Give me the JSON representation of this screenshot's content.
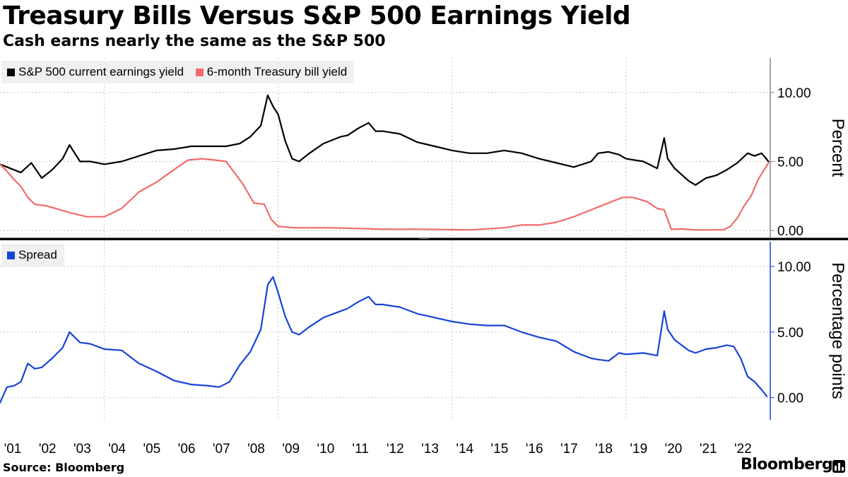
{
  "title": "Treasury Bills Versus S&P 500 Earnings Yield",
  "subtitle": "Cash earns nearly the same as the S&P 500",
  "source": "Source: Bloomberg",
  "brand": "Bloomberg",
  "colors": {
    "earnings_yield": "#000000",
    "tbill": "#f06b6b",
    "spread": "#1744d6",
    "grid": "#c8c8c8",
    "legend_bg": "#f0f0f0"
  },
  "chart_data": [
    {
      "type": "line",
      "panel": "top",
      "ylabel": "Percent",
      "ylim": [
        -0.5,
        12.5
      ],
      "yticks": [
        0,
        5,
        10
      ],
      "ytick_labels": [
        "0.00",
        "5.00",
        "10.00"
      ],
      "legend_placement": "top-left",
      "series": [
        {
          "name": "S&P 500 current earnings yield",
          "color": "#000000",
          "x": [
            2001.0,
            2001.3,
            2001.6,
            2001.9,
            2002.2,
            2002.5,
            2002.8,
            2003.0,
            2003.3,
            2003.6,
            2004.0,
            2004.5,
            2005.0,
            2005.5,
            2006.0,
            2006.5,
            2007.0,
            2007.5,
            2007.9,
            2008.2,
            2008.5,
            2008.7,
            2008.85,
            2009.0,
            2009.2,
            2009.4,
            2009.6,
            2009.9,
            2010.3,
            2010.8,
            2011.0,
            2011.3,
            2011.6,
            2011.8,
            2012.0,
            2012.5,
            2013.0,
            2013.5,
            2014.0,
            2014.5,
            2015.0,
            2015.5,
            2016.0,
            2016.5,
            2017.0,
            2017.5,
            2018.0,
            2018.2,
            2018.5,
            2018.8,
            2019.0,
            2019.5,
            2019.9,
            2020.1,
            2020.2,
            2020.4,
            2020.8,
            2021.0,
            2021.3,
            2021.6,
            2021.9,
            2022.2,
            2022.5,
            2022.7,
            2022.9,
            2023.1
          ],
          "values": [
            4.8,
            4.5,
            4.2,
            4.9,
            3.8,
            4.4,
            5.2,
            6.2,
            5.0,
            5.0,
            4.8,
            5.0,
            5.4,
            5.8,
            5.9,
            6.1,
            6.1,
            6.1,
            6.3,
            6.8,
            7.6,
            9.8,
            9.0,
            8.4,
            6.5,
            5.2,
            5.0,
            5.6,
            6.3,
            6.8,
            6.9,
            7.4,
            7.8,
            7.2,
            7.2,
            7.0,
            6.4,
            6.1,
            5.8,
            5.6,
            5.6,
            5.8,
            5.6,
            5.2,
            4.9,
            4.6,
            5.0,
            5.6,
            5.7,
            5.5,
            5.2,
            5.0,
            4.5,
            6.7,
            5.2,
            4.5,
            3.6,
            3.3,
            3.8,
            4.0,
            4.4,
            4.9,
            5.6,
            5.4,
            5.6,
            5.0
          ]
        },
        {
          "name": "6-month Treasury bill yield",
          "color": "#f06b6b",
          "x": [
            2001.0,
            2001.2,
            2001.4,
            2001.6,
            2001.8,
            2002.0,
            2002.3,
            2002.6,
            2003.0,
            2003.5,
            2004.0,
            2004.5,
            2005.0,
            2005.5,
            2006.0,
            2006.4,
            2006.8,
            2007.2,
            2007.5,
            2007.8,
            2008.0,
            2008.3,
            2008.6,
            2008.8,
            2009.0,
            2009.5,
            2010.5,
            2012.0,
            2013.0,
            2014.5,
            2015.5,
            2016.0,
            2016.5,
            2017.0,
            2017.5,
            2018.0,
            2018.5,
            2018.9,
            2019.2,
            2019.6,
            2019.9,
            2020.1,
            2020.3,
            2020.6,
            2021.0,
            2021.5,
            2021.8,
            2022.0,
            2022.2,
            2022.4,
            2022.6,
            2022.8,
            2023.0,
            2023.1
          ],
          "values": [
            4.8,
            4.3,
            3.7,
            3.2,
            2.4,
            1.9,
            1.8,
            1.6,
            1.3,
            1.0,
            1.0,
            1.6,
            2.8,
            3.5,
            4.4,
            5.1,
            5.2,
            5.1,
            5.0,
            4.0,
            3.3,
            2.0,
            1.9,
            0.8,
            0.3,
            0.2,
            0.2,
            0.1,
            0.1,
            0.05,
            0.2,
            0.4,
            0.4,
            0.6,
            1.0,
            1.5,
            2.0,
            2.4,
            2.4,
            2.1,
            1.6,
            1.5,
            0.1,
            0.12,
            0.05,
            0.05,
            0.06,
            0.3,
            0.9,
            1.8,
            2.5,
            3.7,
            4.5,
            4.9
          ]
        }
      ]
    },
    {
      "type": "line",
      "panel": "bottom",
      "ylabel": "Percentage points",
      "ylim": [
        -1.8,
        12.0
      ],
      "yticks": [
        0,
        5,
        10
      ],
      "ytick_labels": [
        "0.00",
        "5.00",
        "10.00"
      ],
      "legend_placement": "top-left",
      "series": [
        {
          "name": "Spread",
          "color": "#1744d6",
          "x": [
            2001.0,
            2001.2,
            2001.4,
            2001.6,
            2001.8,
            2002.0,
            2002.2,
            2002.5,
            2002.8,
            2003.0,
            2003.3,
            2003.6,
            2004.0,
            2004.5,
            2005.0,
            2005.5,
            2006.0,
            2006.5,
            2007.0,
            2007.3,
            2007.6,
            2007.9,
            2008.2,
            2008.5,
            2008.7,
            2008.85,
            2009.0,
            2009.2,
            2009.4,
            2009.6,
            2009.9,
            2010.3,
            2010.8,
            2011.0,
            2011.3,
            2011.6,
            2011.8,
            2012.0,
            2012.5,
            2013.0,
            2013.5,
            2014.0,
            2014.5,
            2015.0,
            2015.5,
            2016.0,
            2016.5,
            2017.0,
            2017.5,
            2018.0,
            2018.2,
            2018.5,
            2018.8,
            2019.0,
            2019.5,
            2019.9,
            2020.1,
            2020.2,
            2020.4,
            2020.8,
            2021.0,
            2021.3,
            2021.6,
            2021.9,
            2022.1,
            2022.3,
            2022.5,
            2022.7,
            2022.9,
            2023.05
          ],
          "values": [
            -0.4,
            0.8,
            0.9,
            1.2,
            2.6,
            2.2,
            2.3,
            3.0,
            3.8,
            5.0,
            4.2,
            4.1,
            3.7,
            3.6,
            2.6,
            2.0,
            1.3,
            1.0,
            0.9,
            0.8,
            1.2,
            2.5,
            3.5,
            5.2,
            8.6,
            9.2,
            8.0,
            6.2,
            5.0,
            4.8,
            5.4,
            6.1,
            6.6,
            6.8,
            7.3,
            7.7,
            7.1,
            7.1,
            6.9,
            6.4,
            6.1,
            5.8,
            5.6,
            5.5,
            5.5,
            5.0,
            4.6,
            4.3,
            3.5,
            3.0,
            2.9,
            2.8,
            3.4,
            3.3,
            3.4,
            3.2,
            6.6,
            5.2,
            4.4,
            3.6,
            3.4,
            3.7,
            3.8,
            4.0,
            3.9,
            3.0,
            1.6,
            1.2,
            0.6,
            0.1
          ]
        }
      ]
    }
  ],
  "x_axis": {
    "tick_labels": [
      "'01",
      "'02",
      "'03",
      "'04",
      "'05",
      "'06",
      "'07",
      "'08",
      "'09",
      "'10",
      "'11",
      "'12",
      "'13",
      "'14",
      "'15",
      "'16",
      "'17",
      "'18",
      "'19",
      "'20",
      "'21",
      "'22"
    ],
    "tick_years": [
      2001,
      2002,
      2003,
      2004,
      2005,
      2006,
      2007,
      2008,
      2009,
      2010,
      2011,
      2012,
      2013,
      2014,
      2015,
      2016,
      2017,
      2018,
      2019,
      2020,
      2021,
      2022
    ],
    "gridline_years": [
      2004,
      2009,
      2014,
      2019
    ],
    "xlim": [
      2001.0,
      2023.15
    ]
  }
}
